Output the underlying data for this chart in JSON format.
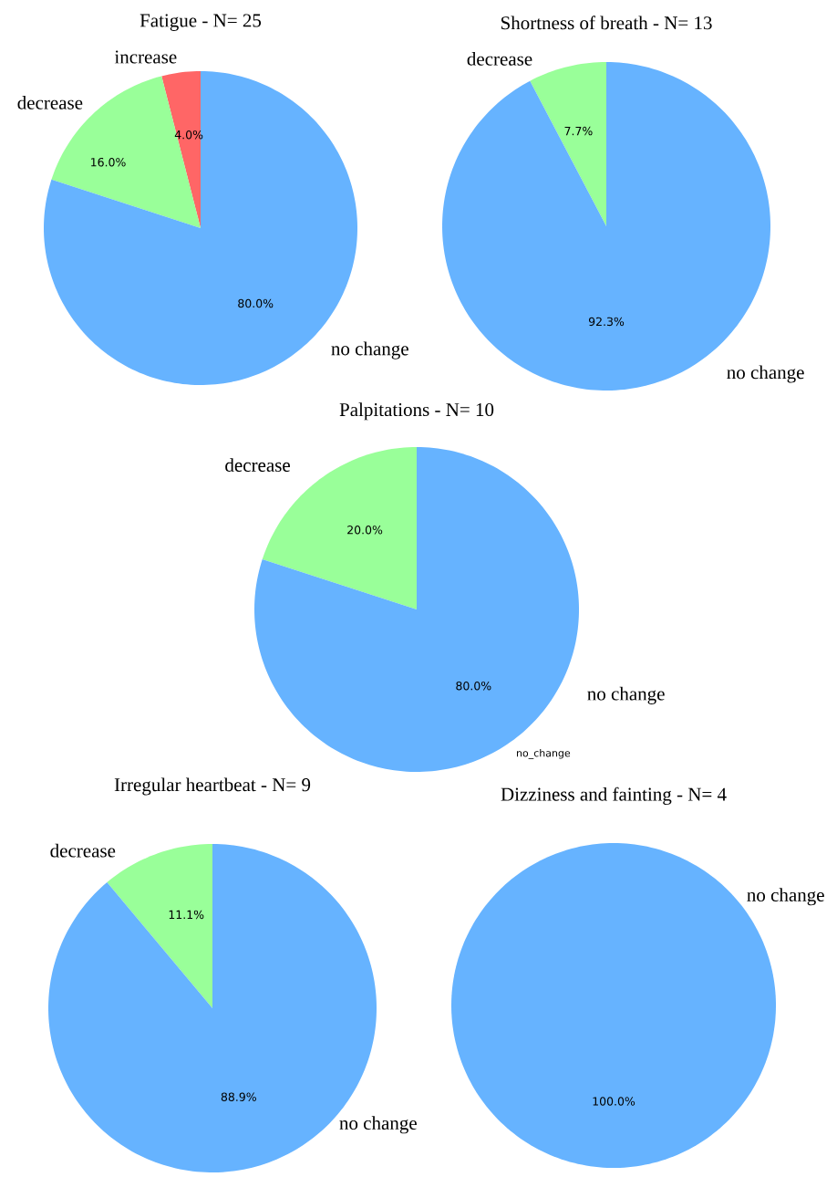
{
  "chart_data": [
    {
      "type": "pie",
      "title": "Fatigue - N= 25",
      "categories": [
        "increase",
        "decrease",
        "no change"
      ],
      "values": [
        4.0,
        16.0,
        80.0
      ],
      "colors": [
        "#ff6666",
        "#99ff99",
        "#66b3ff"
      ],
      "value_labels": [
        "4.0%",
        "16.0%",
        "80.0%"
      ]
    },
    {
      "type": "pie",
      "title": "Shortness of breath - N= 13",
      "categories": [
        "decrease",
        "no change"
      ],
      "values": [
        7.7,
        92.3
      ],
      "colors": [
        "#99ff99",
        "#66b3ff"
      ],
      "value_labels": [
        "7.7%",
        "92.3%"
      ]
    },
    {
      "type": "pie",
      "title": "Palpitations - N= 10",
      "categories": [
        "decrease",
        "no change"
      ],
      "values": [
        20.0,
        80.0
      ],
      "colors": [
        "#99ff99",
        "#66b3ff"
      ],
      "value_labels": [
        "20.0%",
        "80.0%"
      ],
      "annotations": [
        "no_change"
      ]
    },
    {
      "type": "pie",
      "title": "Irregular heartbeat - N= 9",
      "categories": [
        "decrease",
        "no change"
      ],
      "values": [
        11.1,
        88.9
      ],
      "colors": [
        "#99ff99",
        "#66b3ff"
      ],
      "value_labels": [
        "11.1%",
        "88.9%"
      ]
    },
    {
      "type": "pie",
      "title": "Dizziness and fainting - N= 4",
      "categories": [
        "no change"
      ],
      "values": [
        100.0
      ],
      "colors": [
        "#66b3ff"
      ],
      "value_labels": [
        "100.0%"
      ]
    }
  ]
}
